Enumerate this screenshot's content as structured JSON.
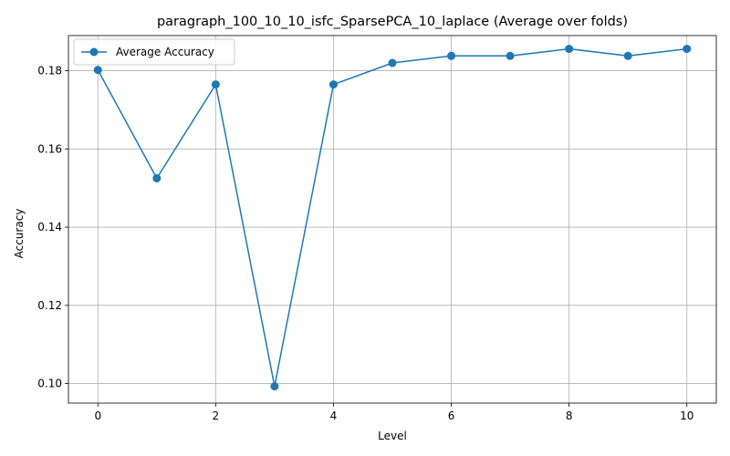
{
  "chart_data": {
    "type": "line",
    "title": "paragraph_100_10_10_isfc_SparsePCA_10_laplace (Average over folds)",
    "xlabel": "Level",
    "ylabel": "Accuracy",
    "xlim": [
      -0.5,
      10.5
    ],
    "ylim": [
      0.095,
      0.189
    ],
    "xticks": [
      0,
      2,
      4,
      6,
      8,
      10
    ],
    "yticks": [
      0.1,
      0.12,
      0.14,
      0.16,
      0.18
    ],
    "ytick_labels": [
      "0.10",
      "0.12",
      "0.14",
      "0.16",
      "0.18"
    ],
    "grid": true,
    "legend_position": "upper-left",
    "series": [
      {
        "name": "Average Accuracy",
        "color": "#1f77b4",
        "marker": "circle",
        "x": [
          0,
          1,
          2,
          3,
          4,
          5,
          6,
          7,
          8,
          9,
          10
        ],
        "y": [
          0.1802,
          0.1525,
          0.1765,
          0.0993,
          0.1765,
          0.182,
          0.1838,
          0.1838,
          0.1856,
          0.1838,
          0.1856
        ]
      }
    ]
  }
}
